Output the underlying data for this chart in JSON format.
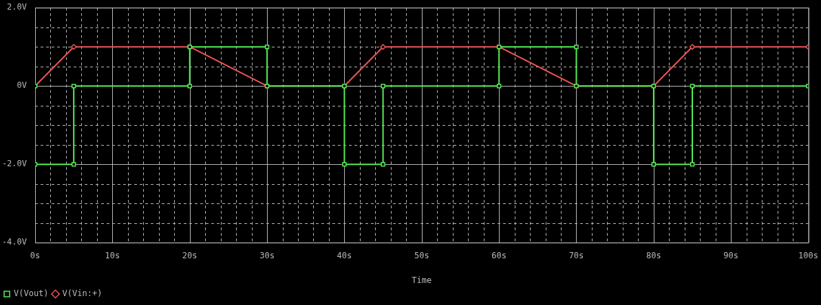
{
  "chart_data": {
    "type": "line",
    "xlabel": "Time",
    "xlim": [
      0,
      100
    ],
    "xticks": [
      {
        "value": 0,
        "label": "0s"
      },
      {
        "value": 2,
        "label": null
      },
      {
        "value": 4,
        "label": null
      },
      {
        "value": 6,
        "label": null
      },
      {
        "value": 8,
        "label": null
      },
      {
        "value": 10,
        "label": "10s"
      },
      {
        "value": 12,
        "label": null
      },
      {
        "value": 14,
        "label": null
      },
      {
        "value": 16,
        "label": null
      },
      {
        "value": 18,
        "label": null
      },
      {
        "value": 20,
        "label": "20s"
      },
      {
        "value": 22,
        "label": null
      },
      {
        "value": 24,
        "label": null
      },
      {
        "value": 26,
        "label": null
      },
      {
        "value": 28,
        "label": null
      },
      {
        "value": 30,
        "label": "30s"
      },
      {
        "value": 32,
        "label": null
      },
      {
        "value": 34,
        "label": null
      },
      {
        "value": 36,
        "label": null
      },
      {
        "value": 38,
        "label": null
      },
      {
        "value": 40,
        "label": "40s"
      },
      {
        "value": 42,
        "label": null
      },
      {
        "value": 44,
        "label": null
      },
      {
        "value": 46,
        "label": null
      },
      {
        "value": 48,
        "label": null
      },
      {
        "value": 50,
        "label": "50s"
      },
      {
        "value": 52,
        "label": null
      },
      {
        "value": 54,
        "label": null
      },
      {
        "value": 56,
        "label": null
      },
      {
        "value": 58,
        "label": null
      },
      {
        "value": 60,
        "label": "60s"
      },
      {
        "value": 62,
        "label": null
      },
      {
        "value": 64,
        "label": null
      },
      {
        "value": 66,
        "label": null
      },
      {
        "value": 68,
        "label": null
      },
      {
        "value": 70,
        "label": "70s"
      },
      {
        "value": 72,
        "label": null
      },
      {
        "value": 74,
        "label": null
      },
      {
        "value": 76,
        "label": null
      },
      {
        "value": 78,
        "label": null
      },
      {
        "value": 80,
        "label": "80s"
      },
      {
        "value": 82,
        "label": null
      },
      {
        "value": 84,
        "label": null
      },
      {
        "value": 86,
        "label": null
      },
      {
        "value": 88,
        "label": null
      },
      {
        "value": 90,
        "label": "90s"
      },
      {
        "value": 92,
        "label": null
      },
      {
        "value": 94,
        "label": null
      },
      {
        "value": 96,
        "label": null
      },
      {
        "value": 98,
        "label": null
      },
      {
        "value": 100,
        "label": "100s"
      }
    ],
    "ylim": [
      -4,
      2
    ],
    "yticks": [
      {
        "value": -4,
        "label": "-4.0V"
      },
      {
        "value": -3.5,
        "label": null
      },
      {
        "value": -3,
        "label": null
      },
      {
        "value": -2.5,
        "label": null
      },
      {
        "value": -2,
        "label": "-2.0V"
      },
      {
        "value": -1.5,
        "label": null
      },
      {
        "value": -1,
        "label": null
      },
      {
        "value": -0.5,
        "label": null
      },
      {
        "value": 0,
        "label": "0V"
      },
      {
        "value": 0.5,
        "label": null
      },
      {
        "value": 1,
        "label": null
      },
      {
        "value": 1.5,
        "label": null
      },
      {
        "value": 2,
        "label": "2.0V"
      }
    ],
    "grid": true,
    "legend": "bottom left",
    "series": [
      {
        "name": "V(Vout)",
        "color": "#55ee55",
        "marker": "square",
        "x": [
          0,
          0,
          5,
          5,
          20,
          20,
          30,
          30,
          40,
          40,
          45,
          45,
          60,
          60,
          70,
          70,
          80,
          80,
          85,
          85,
          100
        ],
        "values": [
          0,
          -2,
          -2,
          0,
          0,
          1,
          1,
          0,
          0,
          -2,
          -2,
          0,
          0,
          1,
          1,
          0,
          0,
          -2,
          -2,
          0,
          0
        ]
      },
      {
        "name": "V(Vin:+)",
        "color": "#ee5555",
        "marker": "diamond",
        "x": [
          0,
          5,
          20,
          30,
          40,
          45,
          60,
          70,
          80,
          85,
          100
        ],
        "values": [
          0,
          1,
          1,
          0,
          0,
          1,
          1,
          0,
          0,
          1,
          1
        ]
      }
    ]
  }
}
